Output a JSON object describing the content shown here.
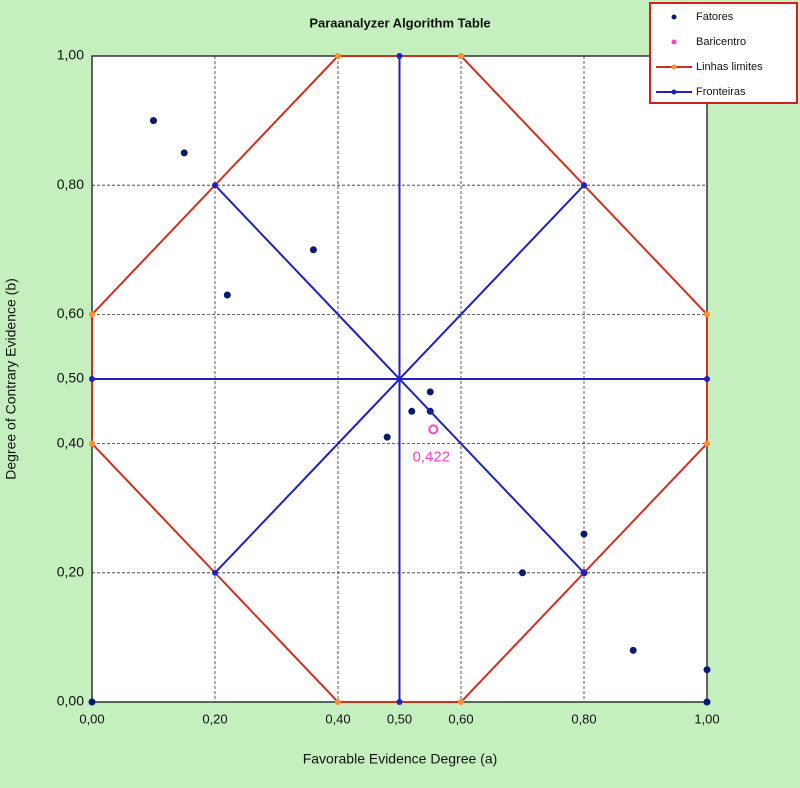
{
  "chart_data": {
    "type": "scatter",
    "title": "Paraanalyzer Algorithm Table",
    "x_label": "Favorable Evidence Degree (a)",
    "y_label": "Degree of Contrary Evidence (b)",
    "xlim": [
      0,
      1
    ],
    "ylim": [
      0,
      1
    ],
    "xticks": [
      {
        "value": 0,
        "label": "0,00"
      },
      {
        "value": 0.2,
        "label": "0,20"
      },
      {
        "value": 0.4,
        "label": "0,40"
      },
      {
        "value": 0.5,
        "label": "0,50"
      },
      {
        "value": 0.6,
        "label": "0,60"
      },
      {
        "value": 0.8,
        "label": "0,80"
      },
      {
        "value": 1,
        "label": "1,00"
      }
    ],
    "yticks": [
      {
        "value": 0,
        "label": "0,00"
      },
      {
        "value": 0.2,
        "label": "0,20"
      },
      {
        "value": 0.4,
        "label": "0,40"
      },
      {
        "value": 0.5,
        "label": "0,50"
      },
      {
        "value": 0.6,
        "label": "0,60"
      },
      {
        "value": 0.8,
        "label": "0,80"
      },
      {
        "value": 1,
        "label": "1,00"
      }
    ],
    "grid": true,
    "legend": "upper right",
    "series": [
      {
        "name": "Fatores",
        "color": "#0a1a6e",
        "mode": "markers",
        "x": [
          0,
          1,
          0.1,
          0.15,
          0.22,
          0.36,
          0.48,
          0.52,
          0.55,
          0.55,
          0.7,
          0.8,
          0.8,
          0.88,
          1
        ],
        "values": [
          0,
          0,
          0.9,
          0.85,
          0.63,
          0.7,
          0.41,
          0.45,
          0.48,
          0.45,
          0.2,
          0.26,
          0.2,
          0.08,
          0.05
        ]
      },
      {
        "name": "Baricentro",
        "color": "#ff44cc",
        "mode": "markers",
        "x": [
          0.555
        ],
        "values": [
          0.422
        ],
        "value_labels": [
          "0,422"
        ]
      },
      {
        "name": "Linhas limites",
        "color": "#d03020",
        "marker_color": "#ff9030",
        "mode": "lines",
        "x": [
          0.4,
          0.6,
          1,
          1,
          0.6,
          0.4,
          0,
          0,
          0.4
        ],
        "values": [
          1,
          1,
          0.6,
          0.4,
          0,
          0,
          0.4,
          0.6,
          1
        ]
      },
      {
        "name": "Fronteiras",
        "color": "#2020c0",
        "mode": "lines",
        "x": [
          0.5,
          0.5,
          null,
          0,
          1,
          null,
          0.2,
          0.8,
          null,
          0.2,
          0.8
        ],
        "values": [
          0,
          1,
          null,
          0.5,
          0.5,
          null,
          0.8,
          0.2,
          null,
          0.2,
          0.8
        ]
      }
    ]
  }
}
